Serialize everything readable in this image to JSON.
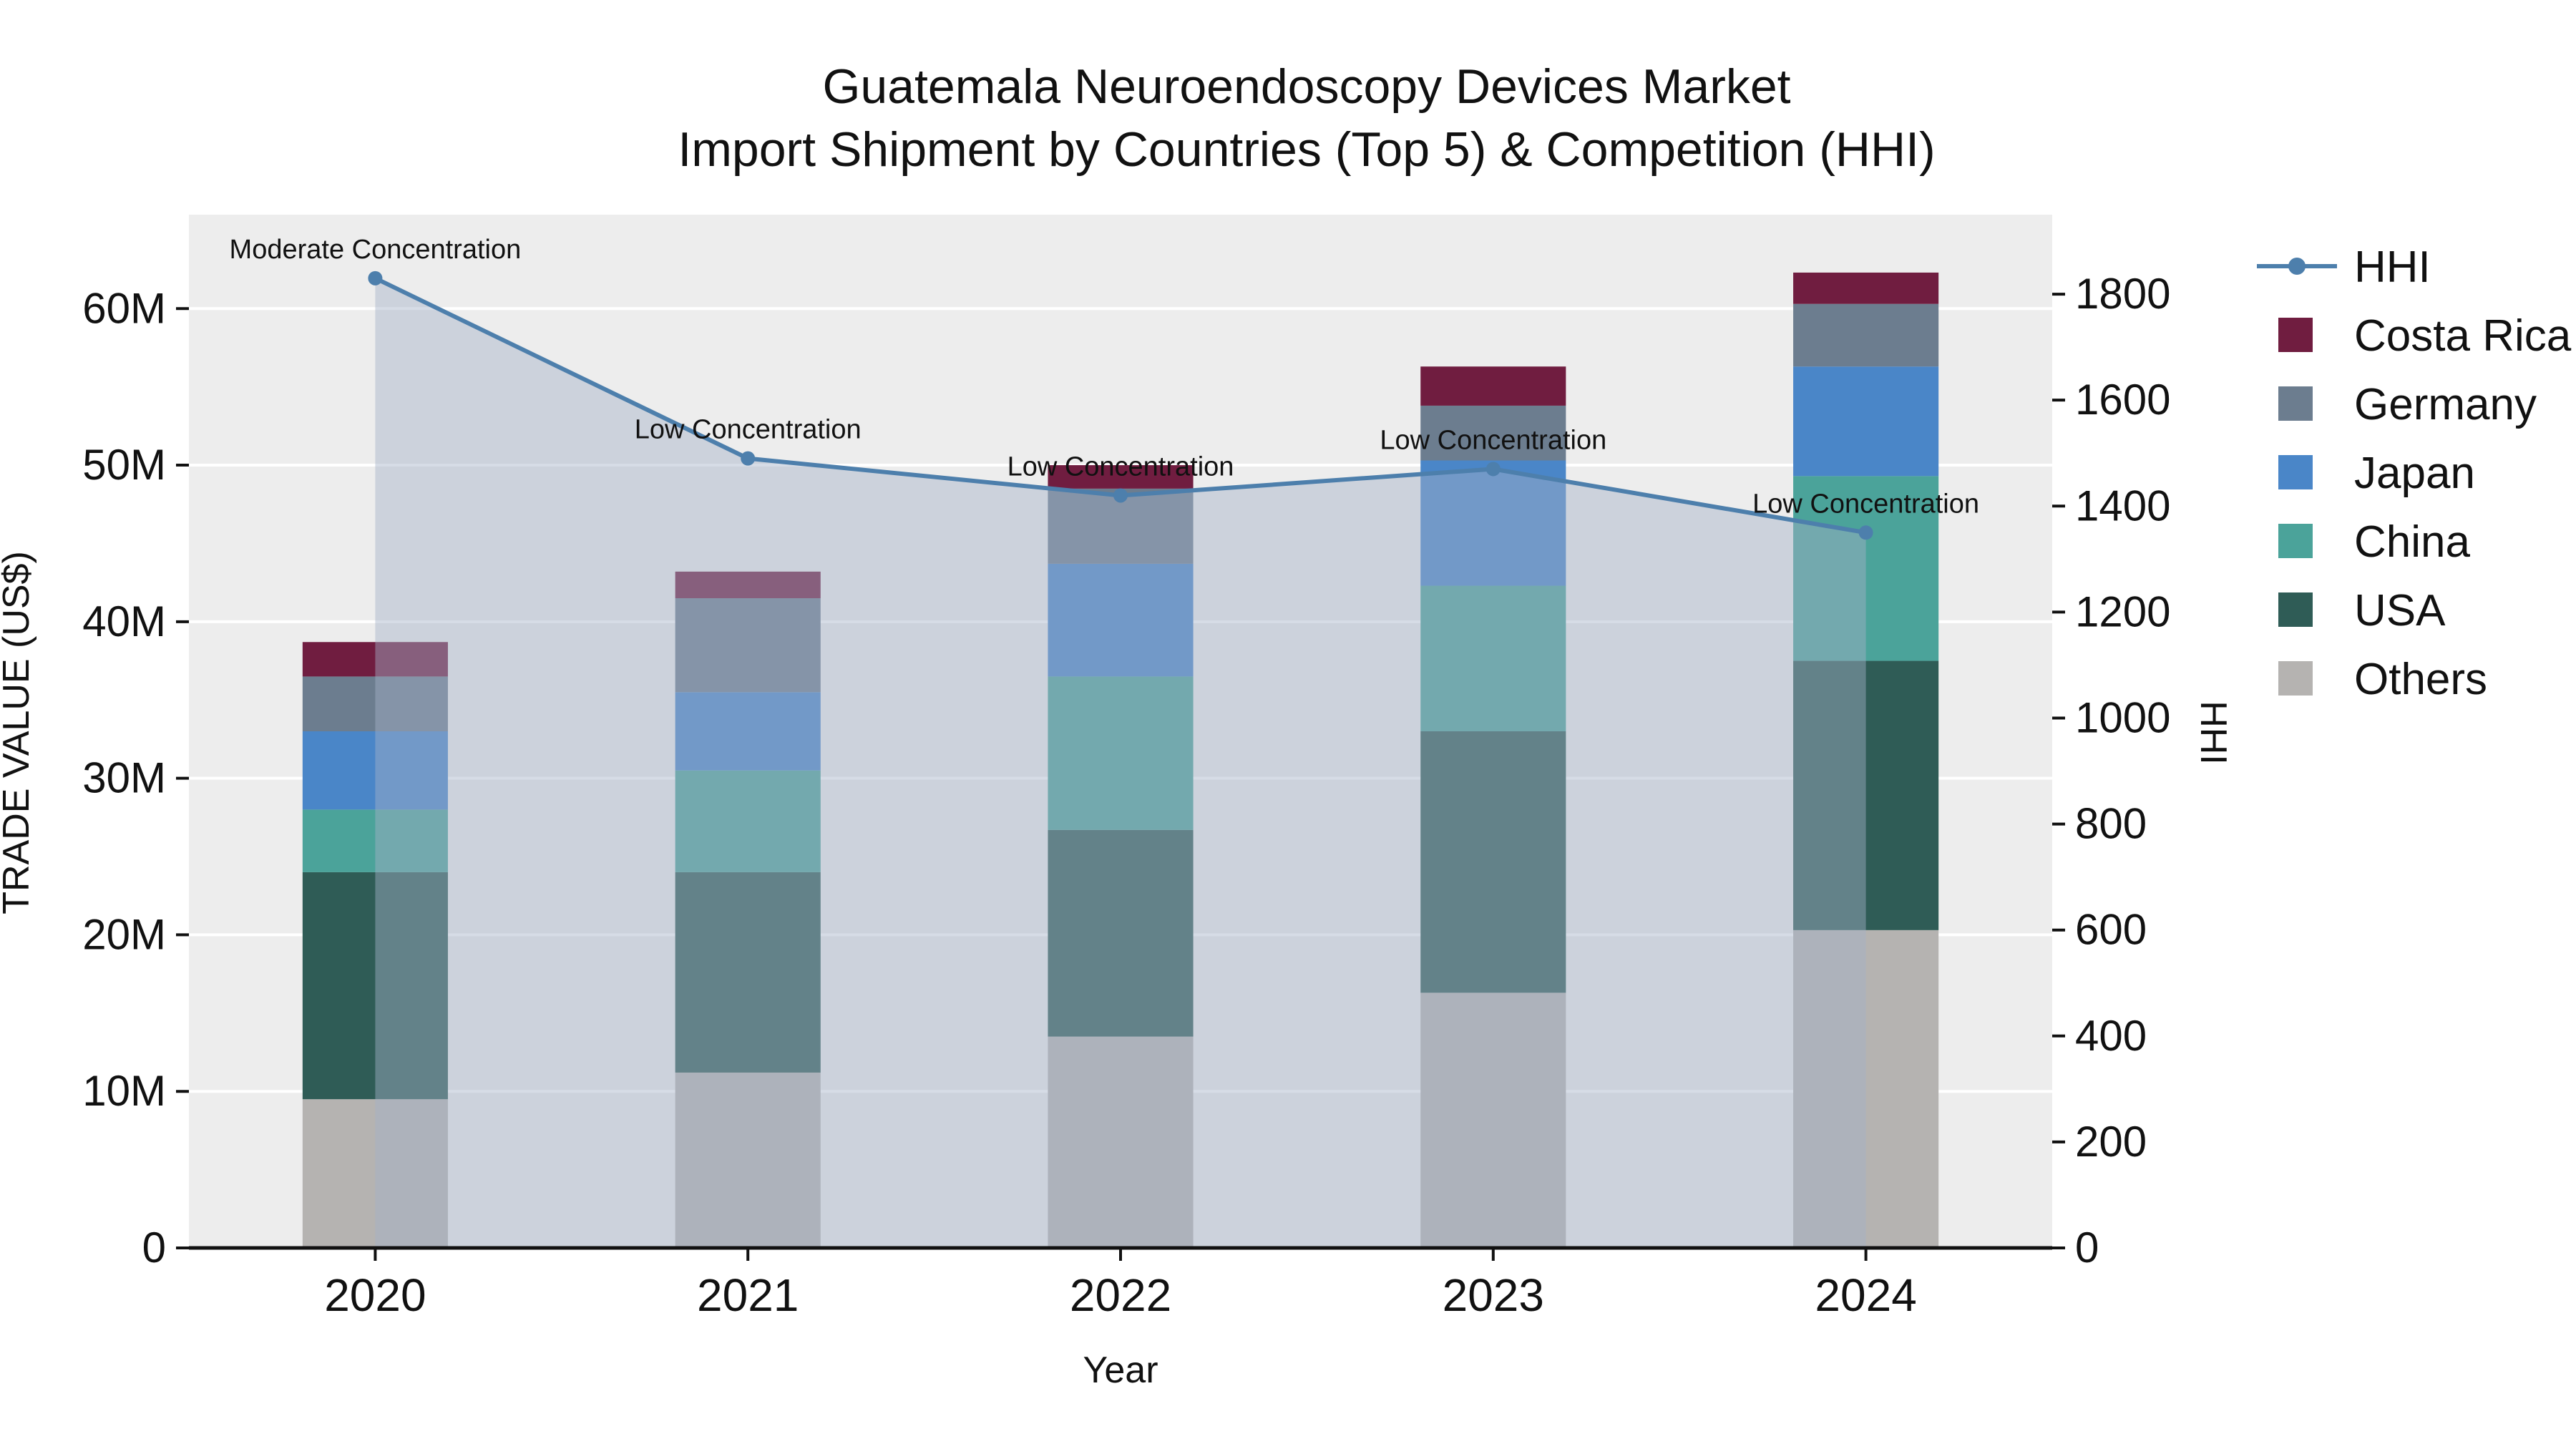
{
  "title": {
    "line1": "Guatemala Neuroendoscopy Devices Market",
    "line2": "Import Shipment by Countries (Top 5) & Competition (HHI)"
  },
  "chart_data": {
    "type": "bar",
    "subtype": "stacked-bars-with-hhi-line-area",
    "title": "Guatemala Neuroendoscopy Devices Market — Import Shipment by Countries (Top 5) & Competition (HHI)",
    "categories": [
      "2020",
      "2021",
      "2022",
      "2023",
      "2024"
    ],
    "xlabel": "Year",
    "ylabel_left": "TRADE VALUE (US$)",
    "ylabel_right": "HHI",
    "units_left": "USD",
    "plot_bg": "#ededed",
    "grid_color": "#ffffff",
    "grid": "on",
    "legend_position": "right",
    "y_left": {
      "min": 0,
      "max": 66000000,
      "ticks": [
        0,
        10000000,
        20000000,
        30000000,
        40000000,
        50000000,
        60000000
      ],
      "tick_labels": [
        "0",
        "10M",
        "20M",
        "30M",
        "40M",
        "50M",
        "60M"
      ]
    },
    "y_right": {
      "min": 0,
      "max": 1950,
      "ticks": [
        0,
        200,
        400,
        600,
        800,
        1000,
        1200,
        1400,
        1600,
        1800
      ]
    },
    "series": [
      {
        "name": "Others",
        "color": "#b5b3b1",
        "values": [
          9500000,
          11200000,
          13500000,
          16300000,
          20300000
        ]
      },
      {
        "name": "USA",
        "color": "#2f5c56",
        "values": [
          14500000,
          12800000,
          13200000,
          16700000,
          17200000
        ]
      },
      {
        "name": "China",
        "color": "#4ba39a",
        "values": [
          4000000,
          6500000,
          9800000,
          9300000,
          11800000
        ]
      },
      {
        "name": "Japan",
        "color": "#4a86c8",
        "values": [
          5000000,
          5000000,
          7200000,
          8000000,
          7000000
        ]
      },
      {
        "name": "Germany",
        "color": "#6c7d8f",
        "values": [
          3500000,
          6000000,
          4800000,
          3500000,
          4000000
        ]
      },
      {
        "name": "Costa Rica",
        "color": "#701d40",
        "values": [
          2200000,
          1700000,
          1500000,
          2500000,
          2000000
        ]
      }
    ],
    "bar_totals": [
      38700000,
      43200000,
      50000000,
      56300000,
      62300000
    ],
    "hhi": {
      "name": "HHI",
      "color": "#4d7fac",
      "fill": "rgba(163,178,199,0.45)",
      "values": [
        1830,
        1490,
        1420,
        1470,
        1350
      ],
      "annotations": [
        "Moderate Concentration",
        "Low Concentration",
        "Low Concentration",
        "Low Concentration",
        "Low Concentration"
      ]
    },
    "legend": [
      "HHI",
      "Costa Rica",
      "Germany",
      "Japan",
      "China",
      "USA",
      "Others"
    ]
  }
}
